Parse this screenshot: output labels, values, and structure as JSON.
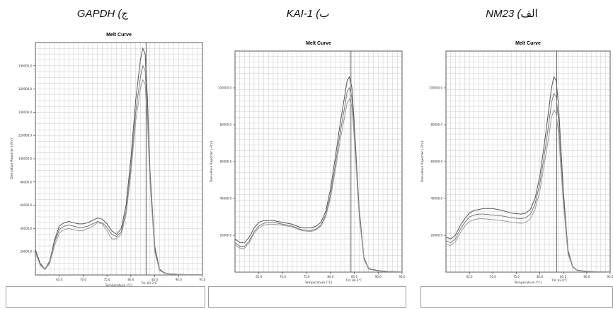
{
  "panels": [
    {
      "heading_latin": "GAPDH (",
      "heading_arabic": "ج",
      "legend_small": "",
      "legend_entries": "",
      "chart_data": {
        "type": "line",
        "title": "Melt Curve",
        "xlabel": "Temperature (°C)",
        "ylabel": "Derivative Reporter (-Rn')",
        "xlim": [
          60,
          95
        ],
        "ylim": [
          0,
          200000
        ],
        "xticks": [
          65,
          70,
          75,
          80,
          85,
          90,
          95
        ],
        "yticks": [
          20000,
          40000,
          60000,
          80000,
          100000,
          120000,
          140000,
          160000,
          180000
        ],
        "tm_line": 83.2,
        "tm_label": "Tm: 83.2°C",
        "grid": true,
        "x": [
          60,
          61,
          62,
          63,
          64,
          65,
          66,
          67,
          68,
          69,
          70,
          71,
          72,
          73,
          74,
          75,
          76,
          77,
          78,
          79,
          80,
          81,
          82,
          82.5,
          83,
          83.5,
          84,
          85,
          86,
          87,
          88,
          90,
          92,
          95
        ],
        "series": [
          {
            "values": [
              22000,
              10000,
              5000,
              12000,
              30000,
              42000,
              45000,
              46000,
              45000,
              44000,
              44000,
              45000,
              47000,
              49000,
              48000,
              44000,
              38000,
              35000,
              40000,
              60000,
              100000,
              150000,
              185000,
              195000,
              190000,
              150000,
              90000,
              25000,
              5000,
              2000,
              1000,
              500,
              300,
              200
            ]
          },
          {
            "values": [
              20000,
              9000,
              5000,
              11000,
              28000,
              39000,
              42000,
              43000,
              42000,
              41000,
              41000,
              42000,
              44000,
              46000,
              45000,
              41000,
              35000,
              33000,
              37000,
              55000,
              92000,
              140000,
              170000,
              180000,
              176000,
              140000,
              85000,
              22000,
              4500,
              1800,
              900,
              500,
              300,
              200
            ]
          },
          {
            "values": [
              19000,
              8500,
              4500,
              10000,
              25000,
              36000,
              39000,
              40000,
              39000,
              38000,
              38000,
              40000,
              42000,
              45000,
              44000,
              38000,
              31000,
              31000,
              35000,
              52000,
              87000,
              132000,
              160000,
              168000,
              164000,
              130000,
              80000,
              20000,
              4000,
              1500,
              800,
              400,
              250,
              150
            ]
          }
        ]
      }
    },
    {
      "heading_latin": "KAI-1 (",
      "heading_arabic": "ب",
      "legend_small": "",
      "legend_entries": "",
      "chart_data": {
        "type": "line",
        "title": "Melt Curve",
        "xlabel": "Temperature (°C)",
        "ylabel": "Derivative Reporter (-Rn')",
        "xlim": [
          60,
          95
        ],
        "ylim": [
          0,
          120000
        ],
        "xticks": [
          65,
          70,
          75,
          80,
          85,
          90,
          95
        ],
        "yticks": [
          20000,
          40000,
          60000,
          80000,
          100000
        ],
        "tm_line": 84.3,
        "tm_label": "Tm: 84.3°C",
        "grid": true,
        "x": [
          60,
          61,
          62,
          63,
          64,
          65,
          66,
          67,
          68,
          70,
          72,
          74,
          76,
          77,
          78,
          79,
          80,
          81,
          82,
          83,
          83.5,
          84,
          84.5,
          85,
          86,
          87,
          88,
          90,
          92,
          95
        ],
        "series": [
          {
            "values": [
              18000,
              16000,
              16000,
              19000,
              24000,
              27000,
              28000,
              28000,
              28000,
              27000,
              26000,
              24000,
              24000,
              25000,
              27000,
              33000,
              45000,
              62000,
              80000,
              96000,
              104000,
              106000,
              100000,
              80000,
              35000,
              8000,
              2000,
              800,
              400,
              200
            ]
          },
          {
            "values": [
              16000,
              14000,
              14000,
              17000,
              22000,
              25000,
              26500,
              27000,
              27000,
              26000,
              25000,
              23000,
              22500,
              23500,
              25500,
              31000,
              42000,
              58000,
              75000,
              90000,
              98000,
              100000,
              95000,
              76000,
              33000,
              7500,
              1800,
              700,
              350,
              200
            ]
          },
          {
            "values": [
              15000,
              13000,
              13000,
              16000,
              21000,
              24000,
              25500,
              26000,
              26000,
              25500,
              24500,
              22500,
              22000,
              23000,
              25000,
              30000,
              40000,
              55000,
              71000,
              85000,
              92000,
              94000,
              90000,
              72000,
              31000,
              7000,
              1600,
              600,
              300,
              150
            ]
          }
        ]
      }
    },
    {
      "heading_latin": "NM23 (",
      "heading_arabic": "الف",
      "legend_small": "",
      "legend_entries": "",
      "chart_data": {
        "type": "line",
        "title": "Melt Curve",
        "xlabel": "Temperature (°C)",
        "ylabel": "Derivative Reporter (-Rn')",
        "xlim": [
          60,
          95
        ],
        "ylim": [
          0,
          120000
        ],
        "xticks": [
          65,
          70,
          75,
          80,
          85,
          90,
          95
        ],
        "yticks": [
          20000,
          40000,
          60000,
          80000,
          100000
        ],
        "tm_line": 83.6,
        "tm_label": "Tm: 83.6°C",
        "grid": true,
        "x": [
          60,
          61,
          62,
          63,
          64,
          65,
          66,
          67,
          68,
          70,
          72,
          74,
          76,
          77,
          78,
          79,
          80,
          81,
          82,
          82.5,
          83,
          83.5,
          84,
          85,
          86,
          87,
          88,
          90,
          92,
          95
        ],
        "series": [
          {
            "values": [
              19000,
              18000,
              20000,
              25000,
              29000,
              32000,
              33500,
              34000,
              34500,
              34500,
              33500,
              32000,
              31500,
              32000,
              34000,
              40000,
              52000,
              70000,
              90000,
              100000,
              106000,
              104000,
              90000,
              45000,
              12000,
              3000,
              1000,
              500,
              300,
              200
            ]
          },
          {
            "values": [
              17000,
              16000,
              18000,
              23000,
              27000,
              30000,
              31000,
              31500,
              31500,
              31000,
              30500,
              29500,
              29000,
              29500,
              31500,
              37000,
              48000,
              64000,
              82000,
              92000,
              97000,
              95000,
              82000,
              41000,
              11000,
              2800,
              900,
              450,
              250,
              150
            ]
          },
          {
            "values": [
              15000,
              14500,
              16500,
              21000,
              25000,
              27500,
              28500,
              29000,
              29000,
              28500,
              28000,
              27000,
              26500,
              27000,
              29000,
              34000,
              44000,
              59000,
              75000,
              84000,
              88000,
              86000,
              75000,
              38000,
              10000,
              2600,
              800,
              400,
              200,
              100
            ]
          }
        ]
      }
    }
  ]
}
